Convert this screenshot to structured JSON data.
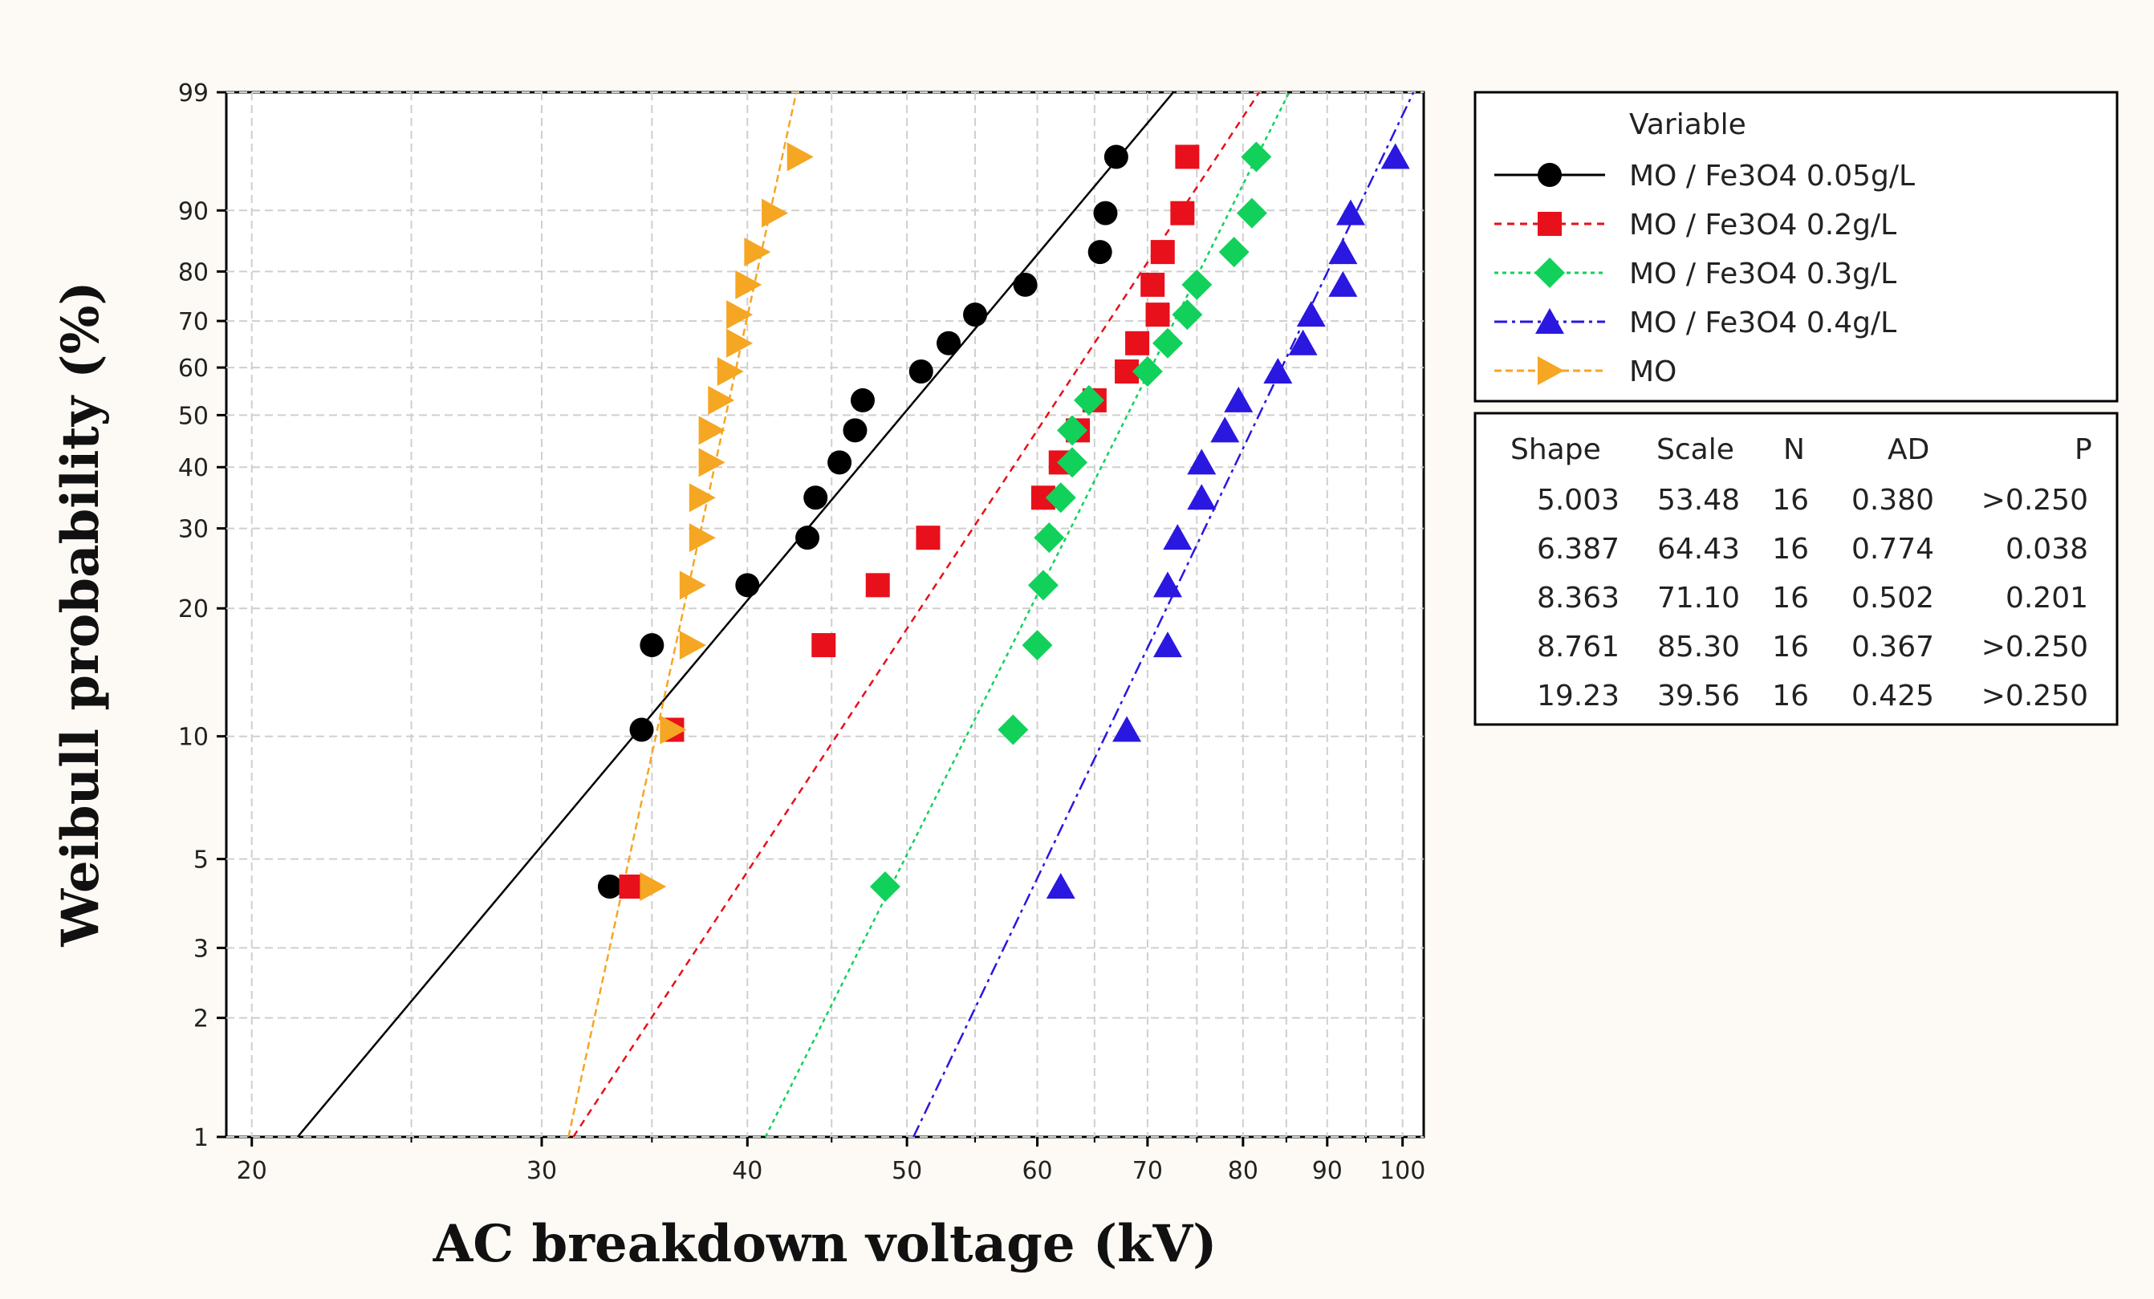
{
  "chart_data": {
    "type": "scatter",
    "title": "",
    "xlabel": "AC breakdown voltage (kV)",
    "ylabel": "Weibull probability (%)",
    "xscale": "log",
    "yscale": "weibull",
    "xlim": [
      19.3,
      103
    ],
    "ylim": [
      1,
      99
    ],
    "xticks": [
      20,
      30,
      40,
      50,
      60,
      70,
      80,
      90,
      100
    ],
    "yticks": [
      1,
      2,
      3,
      5,
      10,
      20,
      30,
      40,
      50,
      60,
      70,
      80,
      90,
      99
    ],
    "grid": true,
    "legend_title": "Variable",
    "legend_position": "top-right",
    "probabilities": [
      4.27,
      10.37,
      16.46,
      22.56,
      28.66,
      34.76,
      40.85,
      46.95,
      53.05,
      59.15,
      65.24,
      71.34,
      77.44,
      83.54,
      89.63,
      95.73
    ],
    "series": [
      {
        "name": "MO / Fe3O4 0.05g/L",
        "color": "#000000",
        "marker": "circle",
        "dash": "",
        "shape": 5.003,
        "scale": 53.48,
        "values": [
          33,
          34.5,
          35,
          40,
          43.5,
          44,
          45.5,
          46.5,
          47,
          51,
          53,
          55,
          59,
          65.5,
          66,
          67
        ]
      },
      {
        "name": "MO / Fe3O4 0.2g/L",
        "color": "#e8101a",
        "marker": "square",
        "dash": "9 7",
        "shape": 6.387,
        "scale": 64.43,
        "values": [
          34,
          36,
          44.5,
          48,
          51.5,
          60.5,
          62,
          63.5,
          65,
          68,
          69,
          71,
          70.5,
          71.5,
          73.5,
          74
        ]
      },
      {
        "name": "MO / Fe3O4 0.3g/L",
        "color": "#11d15a",
        "marker": "diamond",
        "dash": "5 5",
        "shape": 8.363,
        "scale": 71.1,
        "values": [
          48.5,
          58,
          60,
          60.5,
          61,
          62,
          63,
          63,
          64.5,
          70,
          72,
          74,
          75,
          79,
          81,
          81.5
        ]
      },
      {
        "name": "MO / Fe3O4 0.4g/L",
        "color": "#2a17e0",
        "marker": "triangle-up",
        "dash": "16 6 4 6",
        "shape": 8.761,
        "scale": 85.3,
        "values": [
          62,
          68,
          72,
          72,
          73,
          75.5,
          75.5,
          78,
          79.5,
          84,
          87,
          88,
          92,
          92,
          93,
          99
        ]
      },
      {
        "name": "MO",
        "color": "#f5a623",
        "marker": "triangle-right",
        "dash": "9 5",
        "shape": 19.23,
        "scale": 39.56,
        "values": [
          35,
          36,
          37,
          37,
          37.5,
          37.5,
          38,
          38,
          38.5,
          39,
          39.5,
          39.5,
          40,
          40.5,
          41.5,
          43
        ]
      }
    ]
  },
  "stats_table": {
    "headers": [
      "Shape",
      "Scale",
      "N",
      "AD",
      "P"
    ],
    "rows": [
      [
        "5.003",
        "53.48",
        "16",
        "0.380",
        ">0.250"
      ],
      [
        "6.387",
        "64.43",
        "16",
        "0.774",
        "0.038"
      ],
      [
        "8.363",
        "71.10",
        "16",
        "0.502",
        "0.201"
      ],
      [
        "8.761",
        "85.30",
        "16",
        "0.367",
        ">0.250"
      ],
      [
        "19.23",
        "39.56",
        "16",
        "0.425",
        ">0.250"
      ]
    ]
  }
}
